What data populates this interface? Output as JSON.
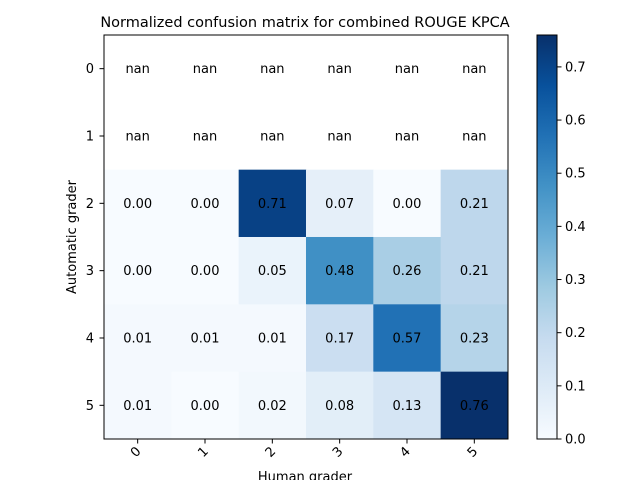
{
  "chart_data": {
    "type": "heatmap",
    "title": "Normalized confusion matrix for combined ROUGE KPCA",
    "xlabel": "Human grader",
    "ylabel": "Automatic grader",
    "x_categories": [
      "0",
      "1",
      "2",
      "3",
      "4",
      "5"
    ],
    "y_categories": [
      "0",
      "1",
      "2",
      "3",
      "4",
      "5"
    ],
    "values": [
      [
        null,
        null,
        null,
        null,
        null,
        null
      ],
      [
        null,
        null,
        null,
        null,
        null,
        null
      ],
      [
        0.0,
        0.0,
        0.71,
        0.07,
        0.0,
        0.21
      ],
      [
        0.0,
        0.0,
        0.05,
        0.48,
        0.26,
        0.21
      ],
      [
        0.01,
        0.01,
        0.01,
        0.17,
        0.57,
        0.23
      ],
      [
        0.01,
        0.0,
        0.02,
        0.08,
        0.13,
        0.76
      ]
    ],
    "cell_labels": [
      [
        "nan",
        "nan",
        "nan",
        "nan",
        "nan",
        "nan"
      ],
      [
        "nan",
        "nan",
        "nan",
        "nan",
        "nan",
        "nan"
      ],
      [
        "0.00",
        "0.00",
        "0.71",
        "0.07",
        "0.00",
        "0.21"
      ],
      [
        "0.00",
        "0.00",
        "0.05",
        "0.48",
        "0.26",
        "0.21"
      ],
      [
        "0.01",
        "0.01",
        "0.01",
        "0.17",
        "0.57",
        "0.23"
      ],
      [
        "0.01",
        "0.00",
        "0.02",
        "0.08",
        "0.13",
        "0.76"
      ]
    ],
    "colormap": "Blues",
    "color_range": [
      0.0,
      0.76
    ],
    "colorbar_ticks": [
      "0.0",
      "0.1",
      "0.2",
      "0.3",
      "0.4",
      "0.5",
      "0.6",
      "0.7"
    ],
    "colorbar_tick_values": [
      0.0,
      0.1,
      0.2,
      0.3,
      0.4,
      0.5,
      0.6,
      0.7
    ],
    "grid": false,
    "colors": {
      "blues_low": "#f7fbff",
      "blues_high": "#08306b",
      "axis": "#000000",
      "nan_cell": "#ffffff"
    }
  }
}
